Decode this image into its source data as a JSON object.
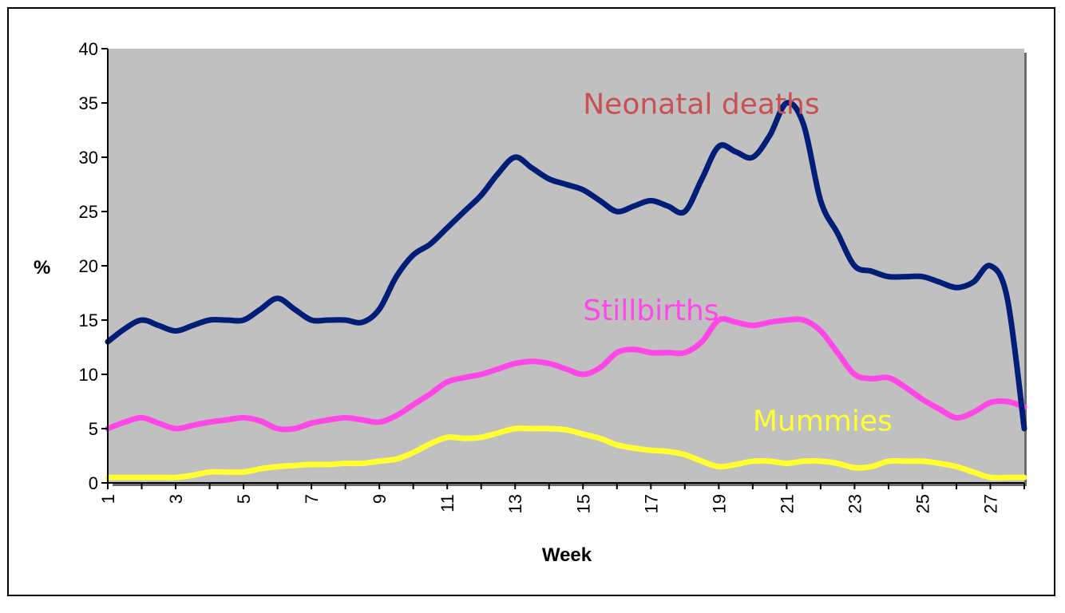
{
  "chart_data": {
    "type": "line",
    "title": "",
    "xlabel": "Week",
    "ylabel": "%",
    "xlim": [
      1,
      28
    ],
    "ylim": [
      0,
      40
    ],
    "yticks": [
      0,
      5,
      10,
      15,
      20,
      25,
      30,
      35,
      40
    ],
    "xtick_labels": [
      "1",
      "3",
      "5",
      "7",
      "9",
      "11",
      "13",
      "15",
      "17",
      "19",
      "21",
      "23",
      "25",
      "27"
    ],
    "plot_background": "#c0c0c0",
    "grid": false,
    "x": [
      1,
      1.5,
      2,
      2.5,
      3,
      3.5,
      4,
      4.5,
      5,
      5.5,
      6,
      6.5,
      7,
      7.5,
      8,
      8.5,
      9,
      9.5,
      10,
      10.5,
      11,
      11.5,
      12,
      12.5,
      13,
      13.5,
      14,
      14.5,
      15,
      15.5,
      16,
      16.5,
      17,
      17.5,
      18,
      18.5,
      19,
      19.5,
      20,
      20.5,
      21,
      21.5,
      22,
      22.5,
      23,
      23.5,
      24,
      24.5,
      25,
      25.5,
      26,
      26.5,
      27,
      27.5,
      28
    ],
    "series": [
      {
        "name": "Neonatal deaths",
        "color": "#001e78",
        "values": [
          13,
          14.2,
          15,
          14.5,
          14,
          14.5,
          15,
          15,
          15,
          16,
          17,
          16,
          15,
          15,
          15,
          14.8,
          16,
          19,
          21,
          22,
          23.5,
          25,
          26.5,
          28.5,
          30,
          29,
          28,
          27.5,
          27,
          26,
          25,
          25.5,
          26,
          25.5,
          25,
          28,
          31,
          30.5,
          30,
          32,
          35,
          33,
          26,
          23,
          20,
          19.5,
          19,
          19,
          19,
          18.5,
          18,
          18.5,
          20,
          17,
          5
        ]
      },
      {
        "name": "Stillbirths",
        "color": "#ff46e6",
        "values": [
          5,
          5.6,
          6,
          5.5,
          5,
          5.3,
          5.6,
          5.8,
          6,
          5.7,
          5,
          5,
          5.5,
          5.8,
          6,
          5.8,
          5.6,
          6.2,
          7.2,
          8.2,
          9.3,
          9.7,
          10,
          10.5,
          11,
          11.2,
          11,
          10.5,
          10,
          10.6,
          12,
          12.3,
          12,
          12,
          12,
          13,
          15,
          14.8,
          14.5,
          14.8,
          15,
          15,
          14,
          12,
          10,
          9.6,
          9.7,
          8.8,
          7.7,
          6.8,
          6,
          6.5,
          7.4,
          7.5,
          7
        ]
      },
      {
        "name": "Mummies",
        "color": "#ffff32",
        "values": [
          0.5,
          0.5,
          0.5,
          0.5,
          0.5,
          0.7,
          1,
          1,
          1,
          1.3,
          1.5,
          1.6,
          1.7,
          1.7,
          1.8,
          1.8,
          2,
          2.2,
          2.8,
          3.6,
          4.2,
          4.1,
          4.2,
          4.6,
          5,
          5,
          5,
          4.9,
          4.5,
          4.1,
          3.5,
          3.2,
          3,
          2.9,
          2.6,
          2,
          1.5,
          1.7,
          2,
          2,
          1.8,
          2,
          2,
          1.8,
          1.4,
          1.5,
          2,
          2,
          2,
          1.8,
          1.5,
          1,
          0.5,
          0.5,
          0.5
        ]
      }
    ],
    "annotations": [
      {
        "text": "Neonatal deaths",
        "color": "#c85050",
        "series": "Neonatal deaths",
        "x": 15,
        "y": 34
      },
      {
        "text": "Stillbirths",
        "color": "#ff46e6",
        "series": "Stillbirths",
        "x": 15,
        "y": 15
      },
      {
        "text": "Mummies",
        "color": "#ffff32",
        "series": "Mummies",
        "x": 20,
        "y": 4.8
      }
    ]
  }
}
